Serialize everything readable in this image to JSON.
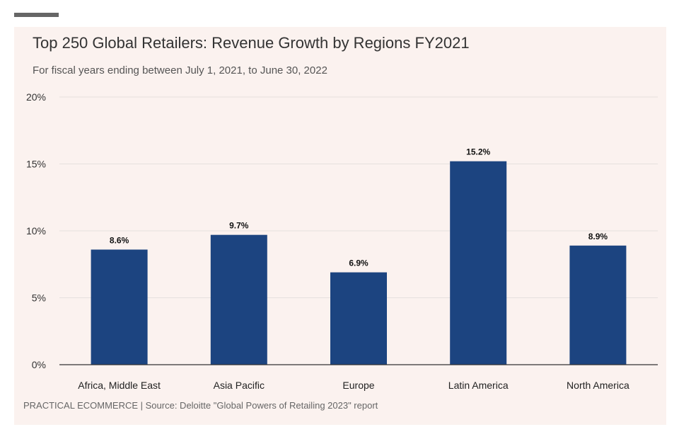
{
  "colors": {
    "bar": "#1c4480",
    "background": "#fbf2ef",
    "grid": "#e6e0de"
  },
  "chart_data": {
    "type": "bar",
    "title": "Top 250 Global Retailers: Revenue Growth by Regions FY2021",
    "subtitle": "For fiscal years ending between July 1, 2021, to June 30, 2022",
    "categories": [
      "Africa, Middle East",
      "Asia Pacific",
      "Europe",
      "Latin America",
      "North America"
    ],
    "values": [
      8.6,
      9.7,
      6.9,
      15.2,
      8.9
    ],
    "data_labels": [
      "8.6%",
      "9.7%",
      "6.9%",
      "15.2%",
      "8.9%"
    ],
    "ylim": [
      0,
      20
    ],
    "yticks": [
      0,
      5,
      10,
      15,
      20
    ],
    "ytick_labels": [
      "0%",
      "5%",
      "10%",
      "15%",
      "20%"
    ],
    "grid": true,
    "source": "PRACTICAL ECOMMERCE | Source: Deloitte \"Global Powers of Retailing 2023\" report"
  }
}
